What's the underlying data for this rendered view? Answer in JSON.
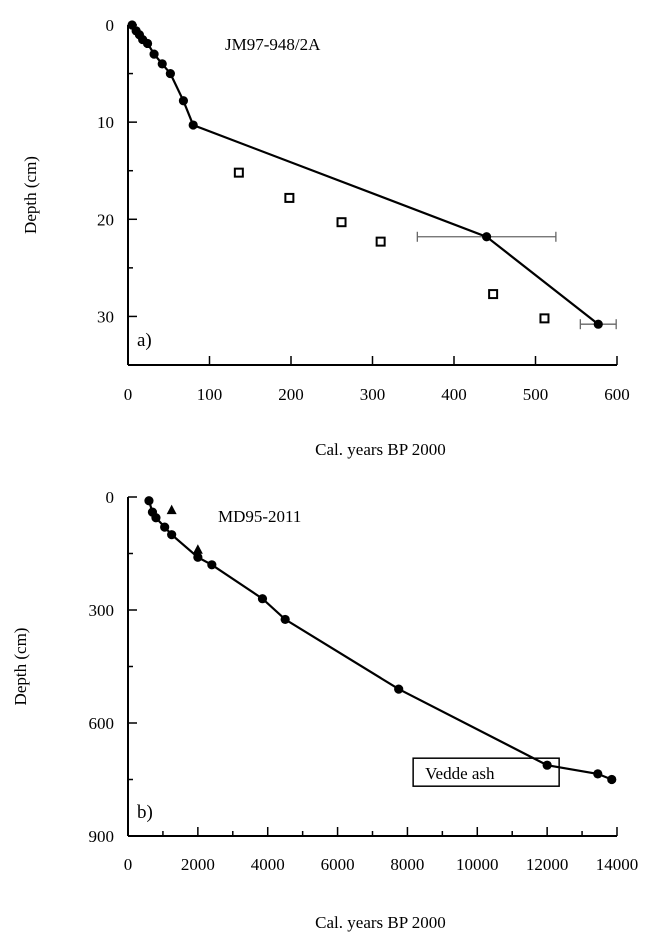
{
  "chart_data": [
    {
      "type": "scatter",
      "panel_label": "a)",
      "annotation": "JM97-948/2A",
      "xlabel": "Cal. years BP 2000",
      "ylabel": "Depth (cm)",
      "xlim": [
        0,
        600
      ],
      "ylim": [
        0,
        35
      ],
      "y_inverted": true,
      "x_ticks": [
        0,
        100,
        200,
        300,
        400,
        500,
        600
      ],
      "y_ticks": [
        0,
        10,
        20,
        30
      ],
      "grid": false,
      "series": [
        {
          "marker": "filled-circle",
          "connected": true,
          "points": [
            {
              "x": 5,
              "y": 0
            },
            {
              "x": 10,
              "y": 0.6
            },
            {
              "x": 14,
              "y": 1.0
            },
            {
              "x": 18,
              "y": 1.5
            },
            {
              "x": 24,
              "y": 1.9
            },
            {
              "x": 32,
              "y": 3.0
            },
            {
              "x": 42,
              "y": 4.0
            },
            {
              "x": 52,
              "y": 5.0
            },
            {
              "x": 68,
              "y": 7.8
            },
            {
              "x": 80,
              "y": 10.3
            },
            {
              "x": 440,
              "y": 21.8,
              "xerr": 85
            },
            {
              "x": 577,
              "y": 30.8,
              "xerr": 22
            }
          ]
        },
        {
          "marker": "open-square",
          "connected": false,
          "points": [
            {
              "x": 136,
              "y": 15.2
            },
            {
              "x": 198,
              "y": 17.8
            },
            {
              "x": 262,
              "y": 20.3
            },
            {
              "x": 310,
              "y": 22.3
            },
            {
              "x": 448,
              "y": 27.7
            },
            {
              "x": 511,
              "y": 30.2
            }
          ]
        }
      ]
    },
    {
      "type": "scatter",
      "panel_label": "b)",
      "annotation": "MD95-2011",
      "xlabel": "Cal. years BP 2000",
      "ylabel": "Depth (cm)",
      "xlim": [
        0,
        14000
      ],
      "ylim": [
        0,
        900
      ],
      "y_inverted": true,
      "x_ticks": [
        0,
        2000,
        4000,
        6000,
        8000,
        10000,
        12000,
        14000
      ],
      "y_ticks": [
        0,
        300,
        600,
        900
      ],
      "grid": false,
      "callout": {
        "label": "Vedde ash",
        "x": 12000,
        "y": 712
      },
      "series": [
        {
          "marker": "filled-circle",
          "connected": true,
          "points": [
            {
              "x": 600,
              "y": 10
            },
            {
              "x": 700,
              "y": 40
            },
            {
              "x": 800,
              "y": 55
            },
            {
              "x": 1050,
              "y": 80
            },
            {
              "x": 1250,
              "y": 100
            },
            {
              "x": 2000,
              "y": 160
            },
            {
              "x": 2400,
              "y": 180
            },
            {
              "x": 3850,
              "y": 270
            },
            {
              "x": 4500,
              "y": 325
            },
            {
              "x": 7750,
              "y": 510
            },
            {
              "x": 12000,
              "y": 712
            },
            {
              "x": 13450,
              "y": 735
            },
            {
              "x": 13850,
              "y": 750
            }
          ]
        },
        {
          "marker": "filled-triangle",
          "connected": false,
          "points": [
            {
              "x": 1250,
              "y": 35
            },
            {
              "x": 2000,
              "y": 140
            }
          ]
        }
      ]
    }
  ]
}
